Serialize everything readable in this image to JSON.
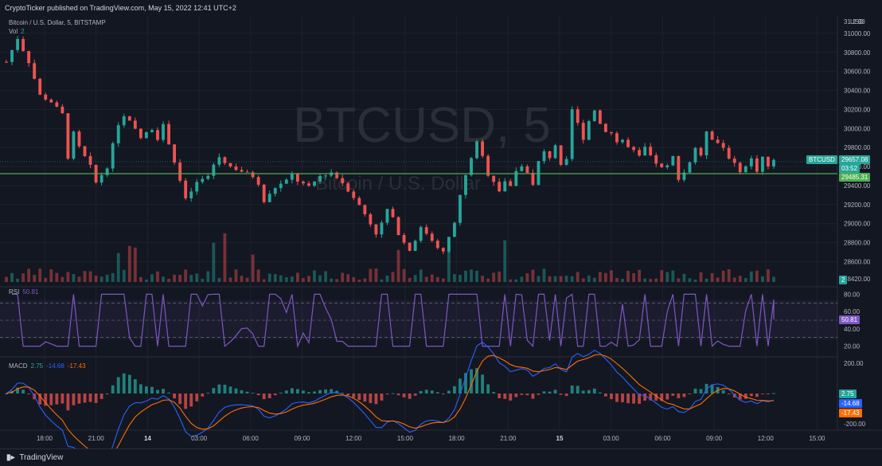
{
  "header": {
    "text": "CryptoTicker published on TradingView.com, May 15, 2022 12:41 UTC+2"
  },
  "symbol": {
    "line": "Bitcoin / U.S. Dollar, 5, BITSTAMP",
    "vol_label": "Vol",
    "vol_value": "2"
  },
  "watermark": {
    "big": "BTCUSD, 5",
    "small": "Bitcoin / U.S. Dollar"
  },
  "price_axis": {
    "unit": "USD",
    "top_cut": "31.2 00",
    "labels": [
      "31000.00",
      "30800.00",
      "30600.00",
      "30400.00",
      "30200.00",
      "30000.00",
      "29800.00",
      "29600.00",
      "29400.00",
      "29200.00",
      "29000.00",
      "28800.00",
      "28600.00",
      "28420.00"
    ]
  },
  "tags": {
    "symbol": "BTCUSD",
    "price": "29657.08",
    "countdown": "03:52",
    "level": "29485.31",
    "vol": "2",
    "rsi": "50.81",
    "macd": "2.75",
    "macd_signal": "-14.68",
    "macd_hist": "-17.43"
  },
  "rsi": {
    "label": "RSI",
    "value": "50.81",
    "axis": [
      "80.00",
      "60.00",
      "40.00",
      "20.00"
    ]
  },
  "macd": {
    "label": "MACD",
    "v1": "2.75",
    "v2": "-14.68",
    "v3": "-17.43",
    "axis": [
      "200.00",
      "-200.00"
    ]
  },
  "time_axis": [
    "18:00",
    "21:00",
    "14",
    "03:00",
    "06:00",
    "09:00",
    "12:00",
    "15:00",
    "18:00",
    "21:00",
    "15",
    "03:00",
    "06:00",
    "09:00",
    "12:00",
    "15:00"
  ],
  "footer": {
    "brand": "TradingView"
  },
  "colors": {
    "up": "#26a69a",
    "down": "#ef5350",
    "rsi": "#7e57c2",
    "level": "#4caf50",
    "macd": "#2962ff",
    "signal": "#ff6d00",
    "bg": "#131722"
  },
  "chart_data": {
    "type": "candlestick",
    "title": "Bitcoin / U.S. Dollar, 5, BITSTAMP",
    "ylim": [
      28420,
      31100
    ],
    "horizontal_level": 29485.31,
    "last_price": 29657.08,
    "close_path": [
      [
        0,
        30700
      ],
      [
        2,
        30950
      ],
      [
        4,
        30700
      ],
      [
        6,
        30350
      ],
      [
        8,
        30280
      ],
      [
        10,
        30150
      ],
      [
        11,
        29700
      ],
      [
        12,
        29950
      ],
      [
        13,
        29800
      ],
      [
        15,
        29600
      ],
      [
        16,
        29430
      ],
      [
        18,
        29600
      ],
      [
        20,
        30050
      ],
      [
        21,
        30120
      ],
      [
        22,
        30070
      ],
      [
        24,
        29900
      ],
      [
        26,
        30000
      ],
      [
        27,
        29900
      ],
      [
        28,
        30030
      ],
      [
        29,
        29850
      ],
      [
        31,
        29450
      ],
      [
        32,
        29250
      ],
      [
        34,
        29430
      ],
      [
        36,
        29500
      ],
      [
        37,
        29620
      ],
      [
        38,
        29700
      ],
      [
        40,
        29600
      ],
      [
        42,
        29550
      ],
      [
        44,
        29500
      ],
      [
        45,
        29400
      ],
      [
        46,
        29230
      ],
      [
        48,
        29380
      ],
      [
        50,
        29450
      ],
      [
        51,
        29520
      ],
      [
        52,
        29450
      ],
      [
        54,
        29380
      ],
      [
        56,
        29500
      ],
      [
        58,
        29540
      ],
      [
        60,
        29430
      ],
      [
        62,
        29280
      ],
      [
        64,
        29100
      ],
      [
        66,
        28900
      ],
      [
        67,
        29000
      ],
      [
        68,
        29150
      ],
      [
        69,
        29050
      ],
      [
        70,
        28900
      ],
      [
        71,
        28800
      ],
      [
        72,
        28720
      ],
      [
        74,
        28950
      ],
      [
        75,
        28900
      ],
      [
        77,
        28760
      ],
      [
        78,
        28700
      ],
      [
        80,
        29000
      ],
      [
        81,
        29300
      ],
      [
        82,
        29500
      ],
      [
        83,
        29700
      ],
      [
        84,
        29850
      ],
      [
        85,
        29700
      ],
      [
        86,
        29520
      ],
      [
        87,
        29450
      ],
      [
        88,
        29350
      ],
      [
        89,
        29450
      ],
      [
        90,
        29380
      ],
      [
        91,
        29560
      ],
      [
        92,
        29600
      ],
      [
        93,
        29550
      ],
      [
        94,
        29400
      ],
      [
        95,
        29650
      ],
      [
        96,
        29750
      ],
      [
        97,
        29700
      ],
      [
        98,
        29830
      ],
      [
        99,
        29600
      ],
      [
        100,
        29660
      ],
      [
        101,
        30200
      ],
      [
        102,
        30050
      ],
      [
        103,
        29900
      ],
      [
        104,
        30080
      ],
      [
        105,
        30200
      ],
      [
        106,
        30050
      ],
      [
        107,
        29980
      ],
      [
        108,
        29950
      ],
      [
        109,
        29860
      ],
      [
        110,
        29880
      ],
      [
        111,
        29800
      ],
      [
        112,
        29760
      ],
      [
        113,
        29700
      ],
      [
        114,
        29800
      ],
      [
        115,
        29700
      ],
      [
        116,
        29640
      ],
      [
        117,
        29580
      ],
      [
        118,
        29600
      ],
      [
        119,
        29700
      ],
      [
        120,
        29480
      ],
      [
        121,
        29540
      ],
      [
        122,
        29650
      ],
      [
        123,
        29800
      ],
      [
        124,
        29700
      ],
      [
        125,
        29980
      ],
      [
        126,
        29900
      ],
      [
        127,
        29850
      ],
      [
        128,
        29800
      ],
      [
        129,
        29700
      ],
      [
        130,
        29620
      ],
      [
        131,
        29560
      ],
      [
        132,
        29600
      ],
      [
        133,
        29680
      ],
      [
        134,
        29560
      ],
      [
        135,
        29700
      ],
      [
        136,
        29600
      ],
      [
        137,
        29657
      ]
    ],
    "rsi": {
      "ylim": [
        15,
        85
      ],
      "bands": [
        70,
        50,
        30
      ],
      "current": 50.81
    },
    "macd": {
      "ylim": [
        -220,
        220
      ],
      "macd": 2.75,
      "signal": -14.68,
      "histogram": -17.43
    }
  }
}
